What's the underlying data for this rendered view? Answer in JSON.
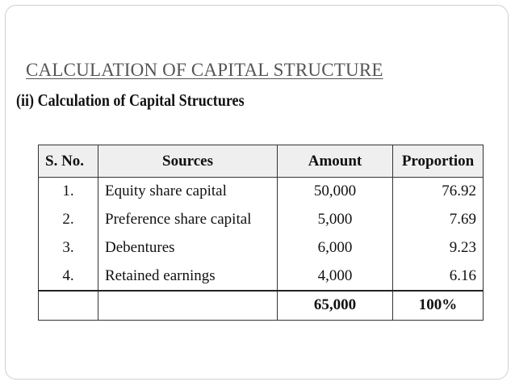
{
  "slide": {
    "title": "CALCULATION OF CAPITAL STRUCTURE",
    "subtitle": "(ii)  Calculation of Capital Structures"
  },
  "table": {
    "headers": [
      "S. No.",
      "Sources",
      "Amount",
      "Proportion"
    ],
    "rows": [
      {
        "sno": "1.",
        "source": "Equity share capital",
        "amount": "50,000",
        "proportion": "76.92"
      },
      {
        "sno": "2.",
        "source": "Preference share capital",
        "amount": "5,000",
        "proportion": "7.69"
      },
      {
        "sno": "3.",
        "source": "Debentures",
        "amount": "6,000",
        "proportion": "9.23"
      },
      {
        "sno": "4.",
        "source": "Retained earnings",
        "amount": "4,000",
        "proportion": "6.16"
      }
    ],
    "total": {
      "sno": "",
      "source": "",
      "amount": "65,000",
      "proportion": "100%"
    }
  }
}
